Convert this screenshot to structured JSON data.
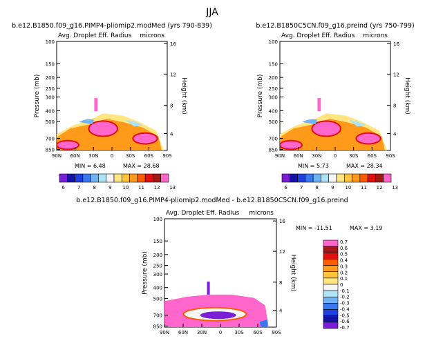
{
  "season": "JJA",
  "colors": {
    "abs_scale": [
      "#7a1fd6",
      "#1313a8",
      "#1f3fe0",
      "#3a78f0",
      "#6fb3f5",
      "#aee3f5",
      "#f5f5f5",
      "#ffe680",
      "#ffc43a",
      "#ff9a1a",
      "#ff5a00",
      "#e01010",
      "#a01818",
      "#ff66cc"
    ],
    "diff_scale": [
      "#7a1fd6",
      "#1313a8",
      "#1f3fe0",
      "#3a78f0",
      "#6fb3f5",
      "#aee3f5",
      "#f5f5f5",
      "#ffe680",
      "#ffc43a",
      "#ff9a1a",
      "#ff5a00",
      "#e01010",
      "#a01818",
      "#ff66cc"
    ]
  },
  "chart_data": [
    {
      "type": "heatmap",
      "id": "left",
      "title": "b.e12.B1850.f09_g16.PIMP4-pliomip2.modMed (yrs 790-839)",
      "subtitle": "Avg. Droplet Eff. Radius",
      "units": "microns",
      "ylabel": "Pressure (mb)",
      "ylabel_right": "Height (km)",
      "x_ticks": [
        "90N",
        "60N",
        "30N",
        "0",
        "30S",
        "60S",
        "90S"
      ],
      "y_ticks": [
        "100",
        "150",
        "200",
        "250",
        "300",
        "400",
        "500",
        "700",
        "850"
      ],
      "y_ticks_right": [
        "16",
        "12",
        "8",
        "4"
      ],
      "min_label": "MIN =",
      "min_value": "6.48",
      "max_label": "MAX =",
      "max_value": "28.68",
      "colorbar_labels": [
        "6",
        "7",
        "8",
        "9",
        "10",
        "11",
        "12",
        "13"
      ]
    },
    {
      "type": "heatmap",
      "id": "right",
      "title": "b.e12.B1850C5CN.f09_g16.preind (yrs 750-799)",
      "subtitle": "Avg. Droplet Eff. Radius",
      "units": "microns",
      "ylabel": "Pressure (mb)",
      "ylabel_right": "Height (km)",
      "x_ticks": [
        "90N",
        "60N",
        "30N",
        "0",
        "30S",
        "60S",
        "90S"
      ],
      "y_ticks": [
        "100",
        "150",
        "200",
        "250",
        "300",
        "400",
        "500",
        "700",
        "850"
      ],
      "y_ticks_right": [
        "16",
        "12",
        "8",
        "4"
      ],
      "min_label": "MIN =",
      "min_value": "5.73",
      "max_label": "MAX =",
      "max_value": "28.34",
      "colorbar_labels": [
        "6",
        "7",
        "8",
        "9",
        "10",
        "11",
        "12",
        "13"
      ]
    },
    {
      "type": "heatmap",
      "id": "diff",
      "title": "b.e12.B1850.f09_g16.PIMP4-pliomip2.modMed - b.e12.B1850C5CN.f09_g16.preind",
      "subtitle": "Avg. Droplet Eff. Radius",
      "units": "microns",
      "ylabel": "Pressure (mb)",
      "ylabel_right": "Height (km)",
      "x_ticks": [
        "90N",
        "60N",
        "30N",
        "0",
        "30S",
        "60S",
        "90S"
      ],
      "y_ticks": [
        "100",
        "150",
        "200",
        "250",
        "300",
        "400",
        "500",
        "700",
        "850"
      ],
      "y_ticks_right": [
        "16",
        "12",
        "8",
        "4"
      ],
      "min_label": "MIN =",
      "min_value": "-11.51",
      "max_label": "MAX =",
      "max_value": "3.19",
      "colorbar_labels": [
        "0.7",
        "0.6",
        "0.5",
        "0.4",
        "0.3",
        "0.2",
        "0.1",
        "0",
        "-0.1",
        "-0.2",
        "-0.3",
        "-0.4",
        "-0.5",
        "-0.6",
        "-0.7"
      ]
    }
  ]
}
